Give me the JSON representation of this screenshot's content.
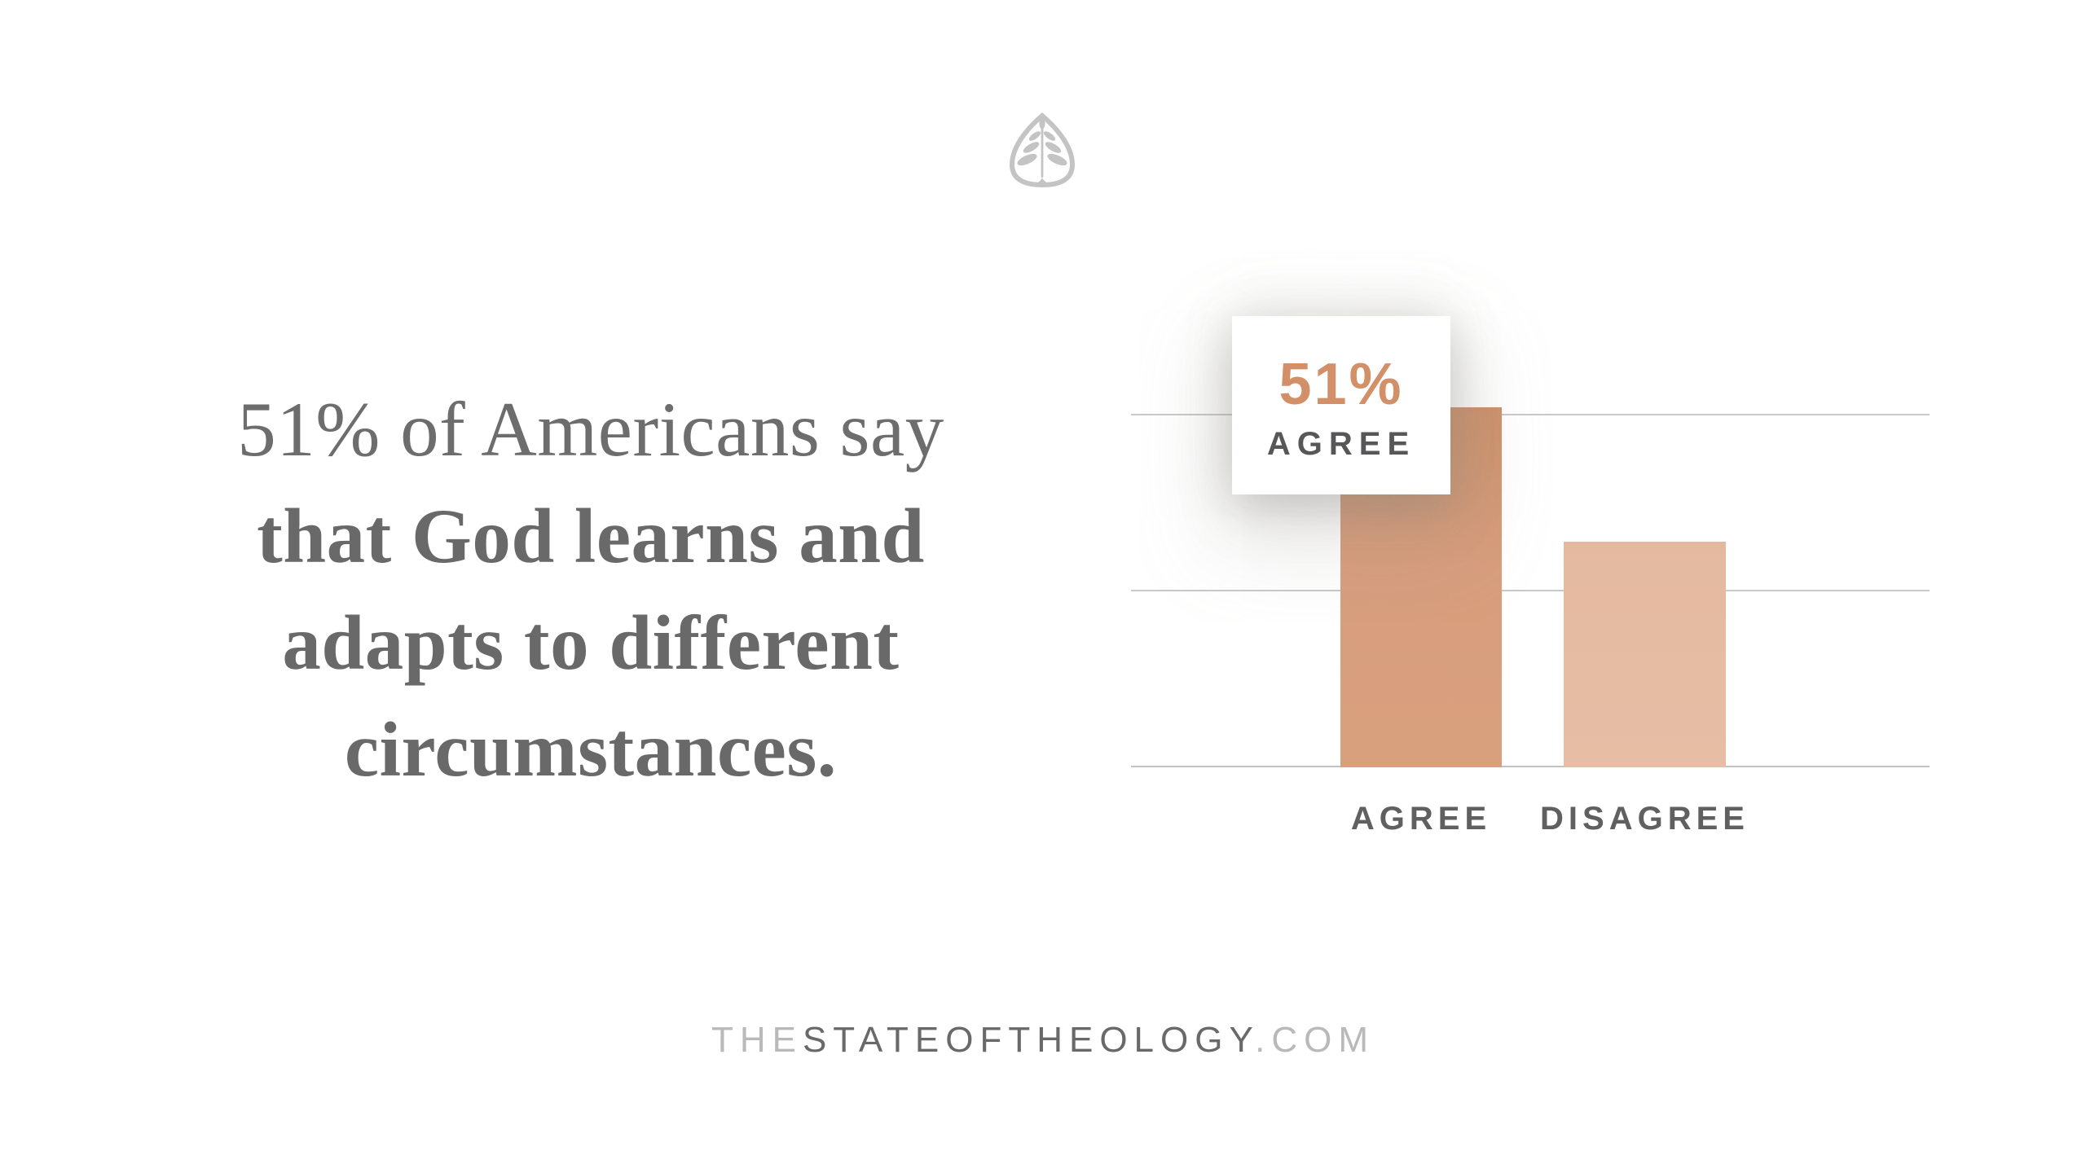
{
  "logo": {
    "name": "ligonier-tree-emblem",
    "color": "#c4c4c4"
  },
  "headline": {
    "line1": "51% of Americans say",
    "line2": "that God learns and",
    "line3": "adapts to different",
    "line4": "circumstances."
  },
  "chart_data": {
    "type": "bar",
    "categories": [
      "AGREE",
      "DISAGREE"
    ],
    "values": [
      51,
      32
    ],
    "unit": "percent",
    "ylim": [
      0,
      58
    ],
    "gridlines_percent": [
      0,
      25,
      50
    ],
    "grid": "horizontal-lines-only",
    "legend_position": "none",
    "callout": {
      "value": "51%",
      "label": "AGREE"
    },
    "bar_colors": [
      "#d59b78",
      "#e7bda3"
    ]
  },
  "footer": {
    "prefix": "THE",
    "main": "STATEOFTHEOLOGY",
    "suffix": ".COM"
  },
  "colors": {
    "background": "#ffffff",
    "headline_text": "#6d6d6d",
    "gridline": "#c9c9c9",
    "accent_salmon": "#d28f68",
    "axis_label": "#606060",
    "footer_light": "#b9b9b9",
    "footer_dark": "#696969"
  }
}
